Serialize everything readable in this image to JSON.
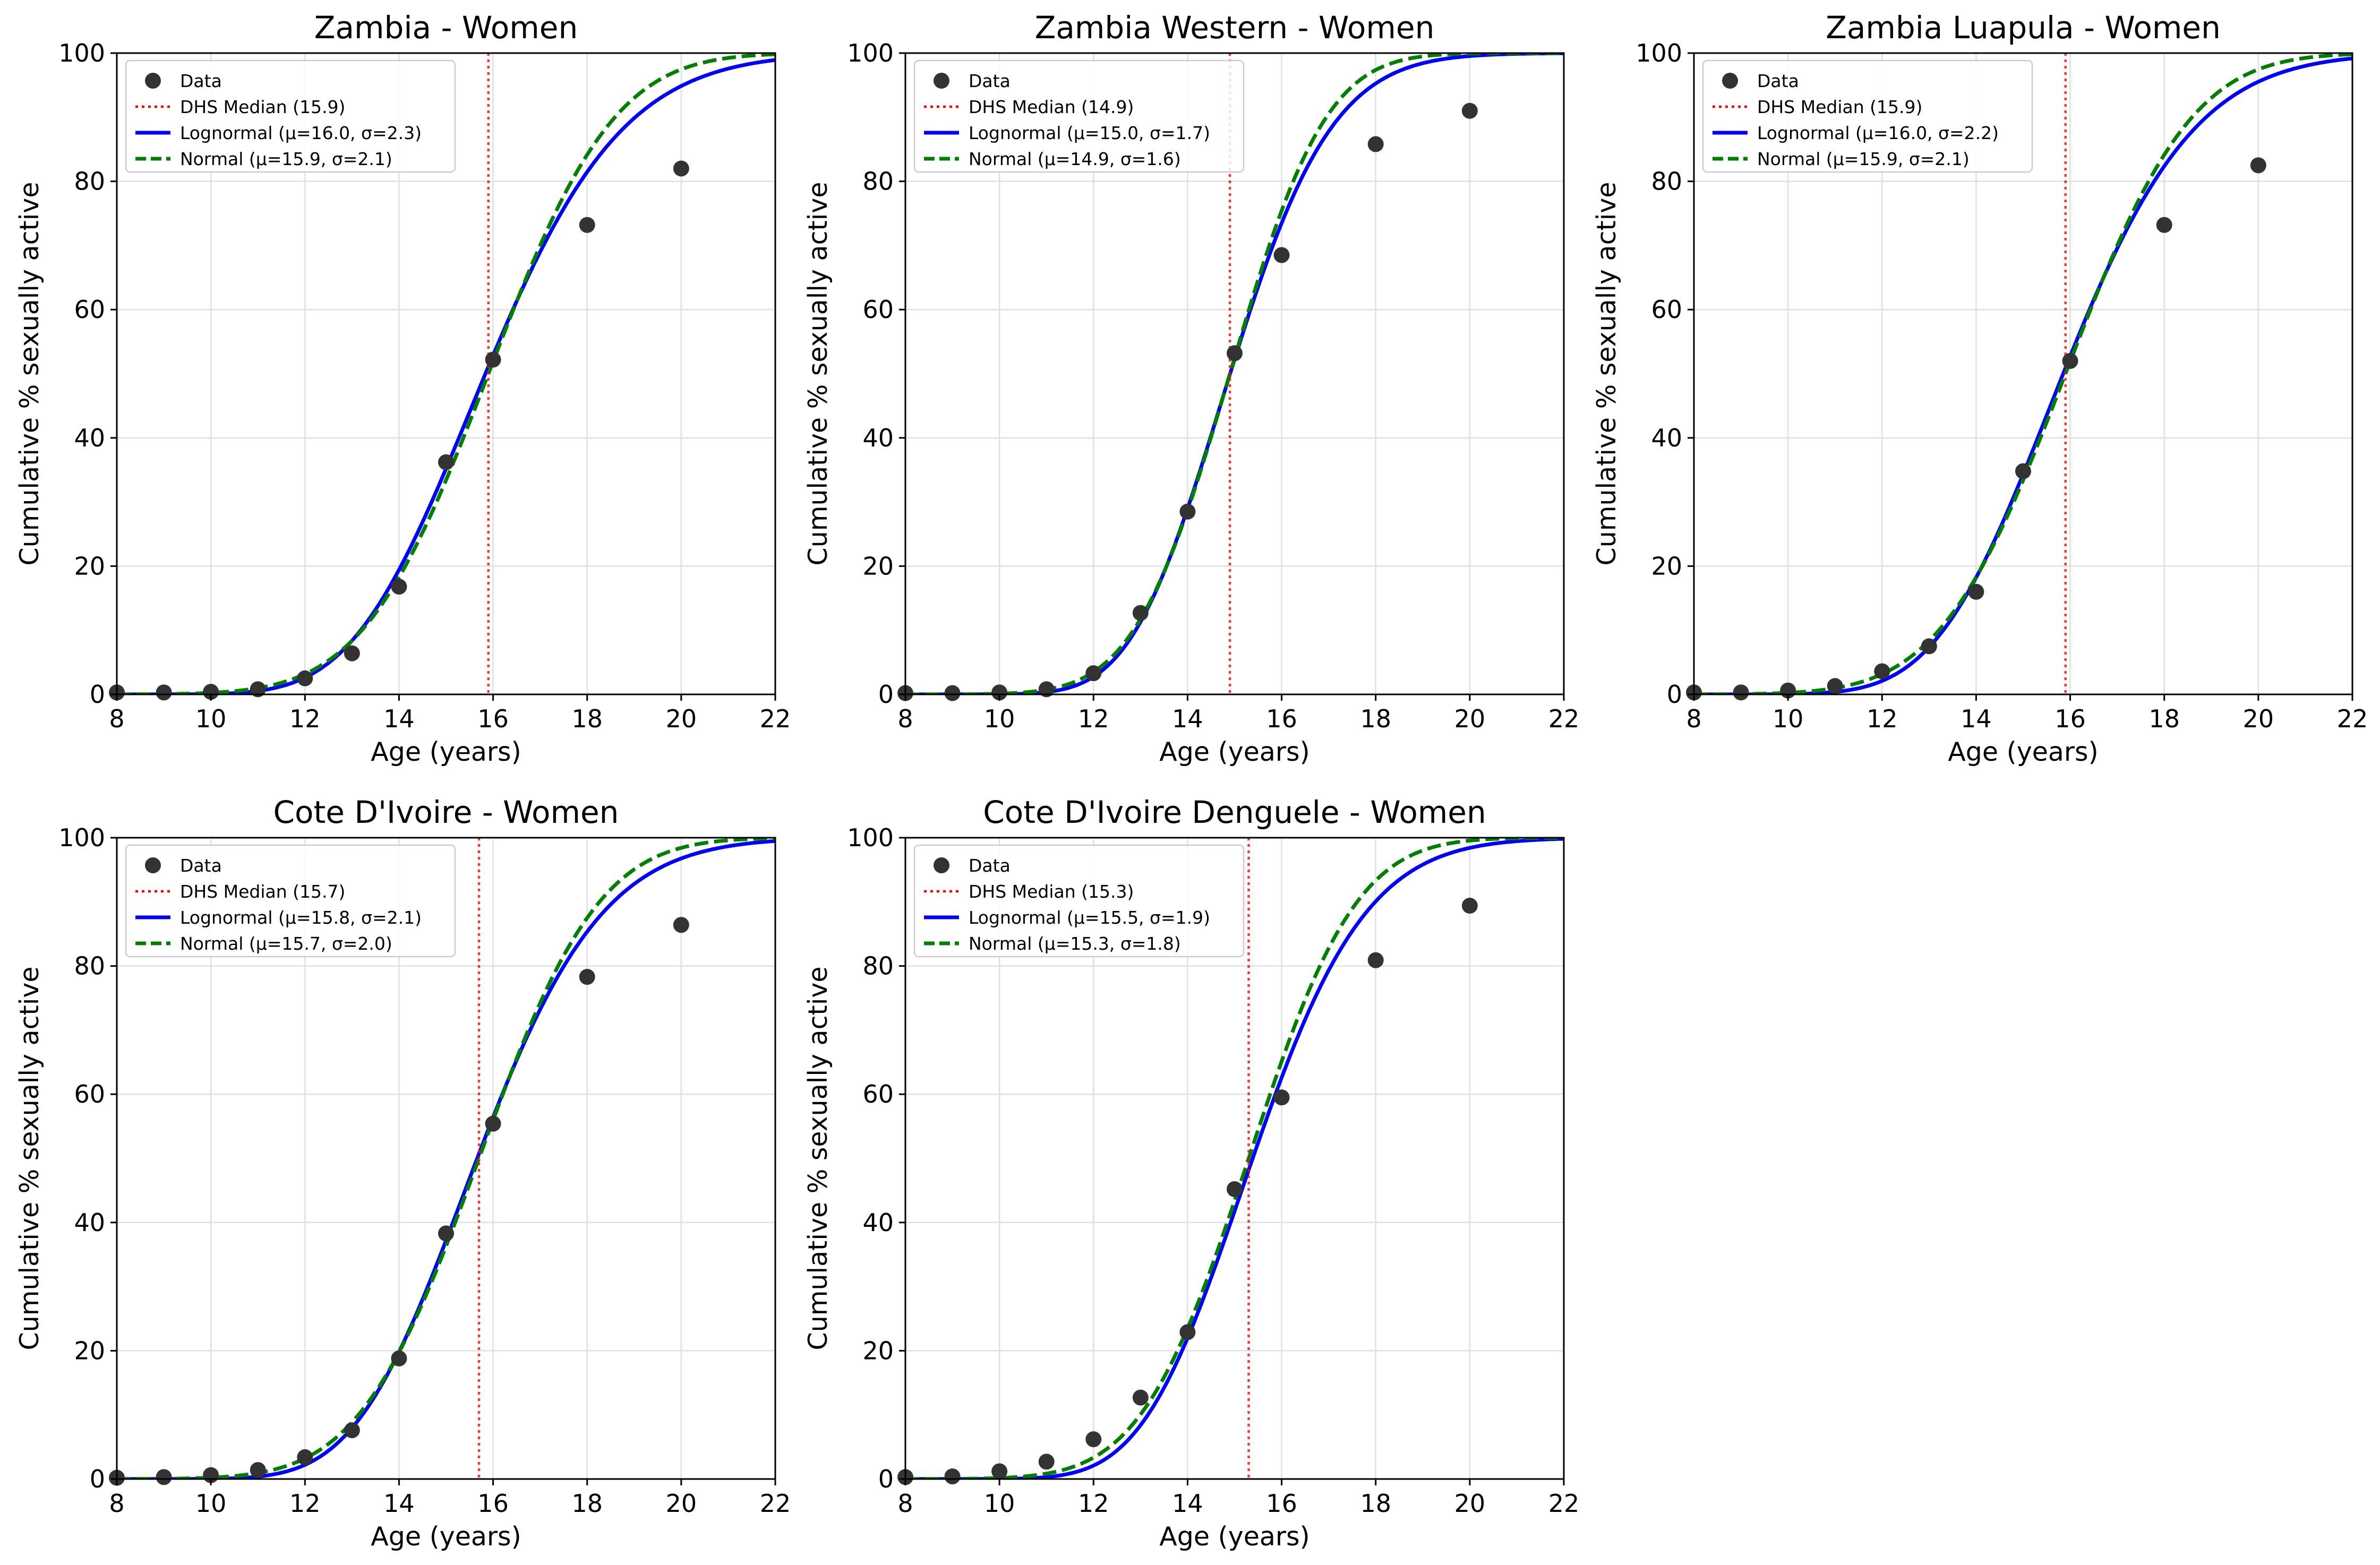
{
  "chart_data": [
    {
      "type": "line",
      "title": "Zambia - Women",
      "xlabel": "Age (years)",
      "ylabel": "Cumulative % sexually active",
      "xlim": [
        8,
        22
      ],
      "ylim": [
        0,
        100
      ],
      "xticks": [
        8,
        10,
        12,
        14,
        16,
        18,
        20,
        22
      ],
      "yticks": [
        0,
        20,
        40,
        60,
        80,
        100
      ],
      "grid": true,
      "legend_position": "top-left",
      "dhs_median": 15.9,
      "lognormal": {
        "mu": 16.0,
        "sigma": 2.3
      },
      "normal": {
        "mu": 15.9,
        "sigma": 2.1
      },
      "legend": [
        "Data",
        "DHS Median (15.9)",
        "Lognormal (μ=16.0, σ=2.3)",
        "Normal (μ=15.9, σ=2.1)"
      ],
      "points": {
        "x": [
          8,
          9,
          10,
          11,
          12,
          13,
          14,
          15,
          16,
          18,
          20
        ],
        "y": [
          0.3,
          0.3,
          0.4,
          0.8,
          2.5,
          6.4,
          16.8,
          36.2,
          52.2,
          73.2,
          82.0
        ]
      }
    },
    {
      "type": "line",
      "title": "Zambia Western - Women",
      "xlabel": "Age (years)",
      "ylabel": "Cumulative % sexually active",
      "xlim": [
        8,
        22
      ],
      "ylim": [
        0,
        100
      ],
      "xticks": [
        8,
        10,
        12,
        14,
        16,
        18,
        20,
        22
      ],
      "yticks": [
        0,
        20,
        40,
        60,
        80,
        100
      ],
      "grid": true,
      "legend_position": "top-left",
      "dhs_median": 14.9,
      "lognormal": {
        "mu": 15.0,
        "sigma": 1.7
      },
      "normal": {
        "mu": 14.9,
        "sigma": 1.6
      },
      "legend": [
        "Data",
        "DHS Median (14.9)",
        "Lognormal (μ=15.0, σ=1.7)",
        "Normal (μ=14.9, σ=1.6)"
      ],
      "points": {
        "x": [
          8,
          9,
          10,
          11,
          12,
          13,
          14,
          15,
          16,
          18,
          20
        ],
        "y": [
          0.2,
          0.2,
          0.3,
          0.8,
          3.3,
          12.7,
          28.5,
          53.2,
          68.5,
          85.8,
          91.0
        ]
      }
    },
    {
      "type": "line",
      "title": "Zambia Luapula - Women",
      "xlabel": "Age (years)",
      "ylabel": "Cumulative % sexually active",
      "xlim": [
        8,
        22
      ],
      "ylim": [
        0,
        100
      ],
      "xticks": [
        8,
        10,
        12,
        14,
        16,
        18,
        20,
        22
      ],
      "yticks": [
        0,
        20,
        40,
        60,
        80,
        100
      ],
      "grid": true,
      "legend_position": "top-left",
      "dhs_median": 15.9,
      "lognormal": {
        "mu": 16.0,
        "sigma": 2.2
      },
      "normal": {
        "mu": 15.9,
        "sigma": 2.1
      },
      "legend": [
        "Data",
        "DHS Median (15.9)",
        "Lognormal (μ=16.0, σ=2.2)",
        "Normal (μ=15.9, σ=2.1)"
      ],
      "points": {
        "x": [
          8,
          9,
          10,
          11,
          12,
          13,
          14,
          15,
          16,
          18,
          20
        ],
        "y": [
          0.3,
          0.3,
          0.6,
          1.3,
          3.6,
          7.5,
          16.0,
          34.8,
          52.0,
          73.2,
          82.5
        ]
      }
    },
    {
      "type": "line",
      "title": "Cote D'Ivoire - Women",
      "xlabel": "Age (years)",
      "ylabel": "Cumulative % sexually active",
      "xlim": [
        8,
        22
      ],
      "ylim": [
        0,
        100
      ],
      "xticks": [
        8,
        10,
        12,
        14,
        16,
        18,
        20,
        22
      ],
      "yticks": [
        0,
        20,
        40,
        60,
        80,
        100
      ],
      "grid": true,
      "legend_position": "top-left",
      "dhs_median": 15.7,
      "lognormal": {
        "mu": 15.8,
        "sigma": 2.1
      },
      "normal": {
        "mu": 15.7,
        "sigma": 2.0
      },
      "legend": [
        "Data",
        "DHS Median (15.7)",
        "Lognormal (μ=15.8, σ=2.1)",
        "Normal (μ=15.7, σ=2.0)"
      ],
      "points": {
        "x": [
          8,
          9,
          10,
          11,
          12,
          13,
          14,
          15,
          16,
          18,
          20
        ],
        "y": [
          0.2,
          0.3,
          0.6,
          1.4,
          3.4,
          7.6,
          18.8,
          38.3,
          55.4,
          78.3,
          86.4
        ]
      }
    },
    {
      "type": "line",
      "title": "Cote D'Ivoire Denguele - Women",
      "xlabel": "Age (years)",
      "ylabel": "Cumulative % sexually active",
      "xlim": [
        8,
        22
      ],
      "ylim": [
        0,
        100
      ],
      "xticks": [
        8,
        10,
        12,
        14,
        16,
        18,
        20,
        22
      ],
      "yticks": [
        0,
        20,
        40,
        60,
        80,
        100
      ],
      "grid": true,
      "legend_position": "top-left",
      "dhs_median": 15.3,
      "lognormal": {
        "mu": 15.5,
        "sigma": 1.9
      },
      "normal": {
        "mu": 15.3,
        "sigma": 1.8
      },
      "legend": [
        "Data",
        "DHS Median (15.3)",
        "Lognormal (μ=15.5, σ=1.9)",
        "Normal (μ=15.3, σ=1.8)"
      ],
      "points": {
        "x": [
          8,
          9,
          10,
          11,
          12,
          13,
          14,
          15,
          16,
          18,
          20
        ],
        "y": [
          0.3,
          0.4,
          1.2,
          2.7,
          6.2,
          12.7,
          22.9,
          45.2,
          59.5,
          80.9,
          89.4
        ]
      }
    }
  ],
  "colors": {
    "data": "#333333",
    "dhs_median": "#ff0000",
    "lognormal": "#0000ff",
    "normal": "#007f00",
    "grid": "#e0e0e0"
  }
}
